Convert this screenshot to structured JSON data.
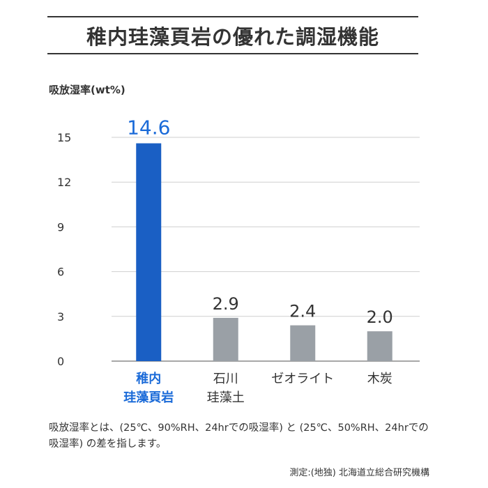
{
  "title": "稚内珪藻頁岩の優れた調湿機能",
  "chart_data": {
    "type": "bar",
    "ylabel": "吸放湿率(wt%)",
    "xlabel": "",
    "ylim": [
      0,
      15
    ],
    "yticks": [
      0,
      3,
      6,
      9,
      12,
      15
    ],
    "categories": [
      [
        "稚内",
        "珪藻頁岩"
      ],
      [
        "石川",
        "珪藻土"
      ],
      [
        "ゼオライト"
      ],
      [
        "木炭"
      ]
    ],
    "values": [
      14.6,
      2.9,
      2.4,
      2.0
    ],
    "value_labels": [
      "14.6",
      "2.9",
      "2.4",
      "2.0"
    ],
    "bar_colors": [
      "#1a5fc4",
      "#9aa0a6",
      "#9aa0a6",
      "#9aa0a6"
    ],
    "label_colors": [
      "#1a6ad8",
      "#333333",
      "#333333",
      "#333333"
    ],
    "grid": true
  },
  "note": "吸放湿率とは、(25℃、90%RH、24hrでの吸湿率) と (25℃、50%RH、24hrでの吸湿率) の差を指します。",
  "source": "測定:(地独) 北海道立総合研究機構"
}
